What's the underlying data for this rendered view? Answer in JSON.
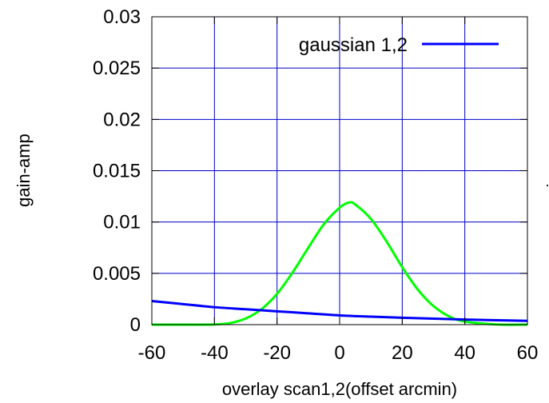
{
  "chart_data": {
    "type": "line",
    "xlabel": "overlay scan1,2(offset arcmin)",
    "ylabel": "gain-amp",
    "y2label": "gain-amp",
    "xlim": [
      -60,
      60
    ],
    "ylim": [
      0,
      0.03
    ],
    "x_ticks": [
      "-60",
      "-40",
      "-20",
      "0",
      "20",
      "40",
      "60"
    ],
    "y_ticks": [
      "0",
      "0.005",
      "0.01",
      "0.015",
      "0.02",
      "0.025",
      "0.03"
    ],
    "grid": true,
    "legend_position": "top-right",
    "series": [
      {
        "name": "gaussian 1,2",
        "color": "#0000ff",
        "x": [
          -60,
          -50,
          -40,
          -30,
          -20,
          -10,
          0,
          10,
          20,
          30,
          40,
          50,
          60
        ],
        "y": [
          0.0023,
          0.002,
          0.0017,
          0.0015,
          0.0013,
          0.0011,
          0.0009,
          0.00078,
          0.00067,
          0.00058,
          0.0005,
          0.00043,
          0.00037
        ]
      },
      {
        "color": "#00ff00",
        "x": [
          -60,
          -50,
          -40,
          -35,
          -30,
          -25,
          -20,
          -15,
          -10,
          -5,
          0,
          3,
          5,
          10,
          15,
          20,
          25,
          30,
          35,
          40,
          50,
          60
        ],
        "y": [
          0,
          0,
          2e-05,
          0.00015,
          0.0006,
          0.0015,
          0.003,
          0.0051,
          0.0075,
          0.0098,
          0.0114,
          0.0119,
          0.0117,
          0.0103,
          0.0081,
          0.0056,
          0.0034,
          0.0018,
          0.0008,
          0.0003,
          2e-05,
          0
        ]
      }
    ]
  }
}
